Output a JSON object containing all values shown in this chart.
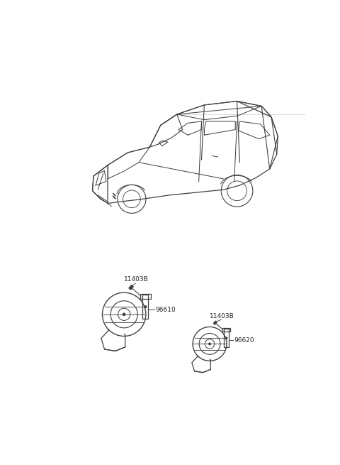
{
  "bg_color": "#ffffff",
  "line_color": "#404040",
  "text_color": "#222222",
  "fig_width": 4.8,
  "fig_height": 6.55,
  "dpi": 100,
  "labels": {
    "part1_bolt": "11403B",
    "part1_horn": "96610",
    "part2_bolt": "11403B",
    "part2_horn": "96620"
  }
}
